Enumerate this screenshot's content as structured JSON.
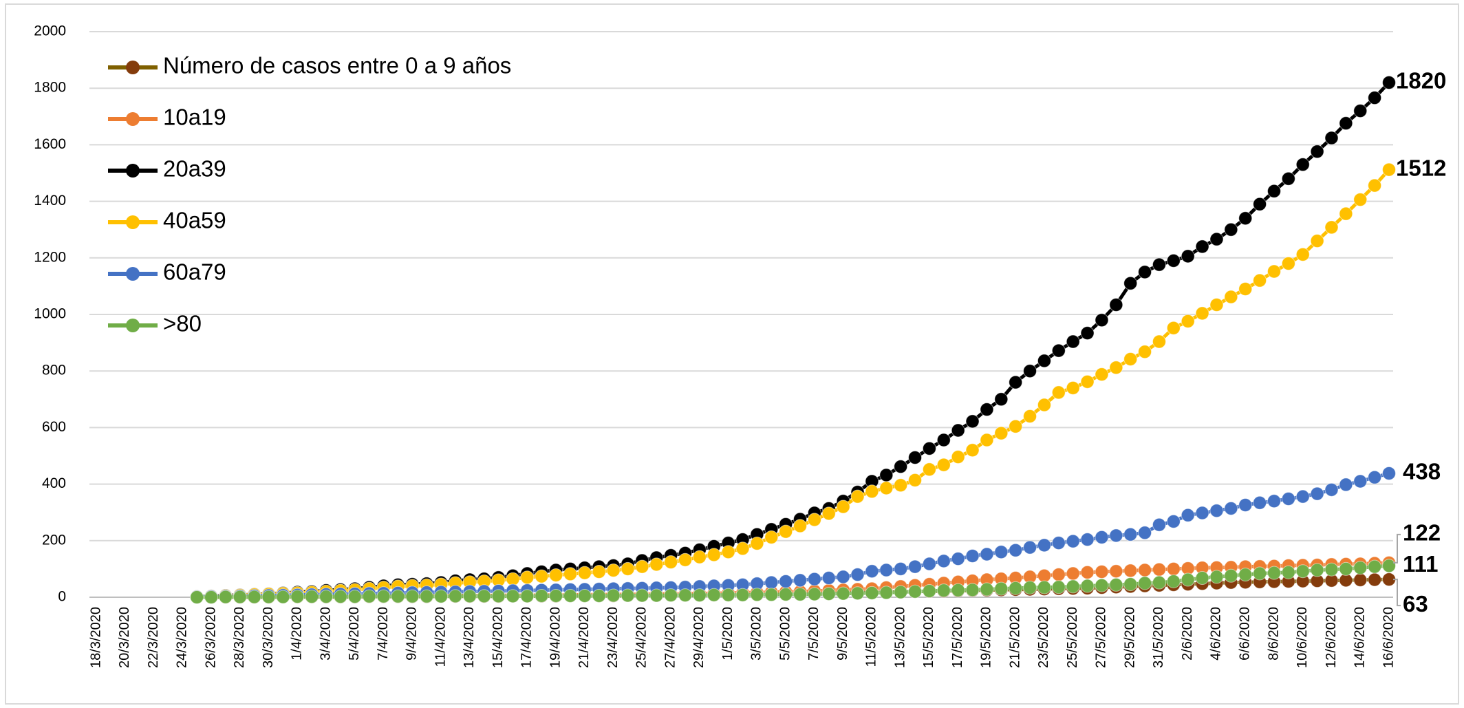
{
  "chart_data": {
    "type": "line",
    "categories": [
      "18/3/2020",
      null,
      "20/3/2020",
      null,
      "22/3/2020",
      null,
      "24/3/2020",
      null,
      "26/3/2020",
      null,
      "28/3/2020",
      null,
      "30/3/2020",
      null,
      "1/4/2020",
      null,
      "3/4/2020",
      null,
      "5/4/2020",
      null,
      "7/4/2020",
      null,
      "9/4/2020",
      null,
      "11/4/2020",
      null,
      "13/4/2020",
      null,
      "15/4/2020",
      null,
      "17/4/2020",
      null,
      "19/4/2020",
      null,
      "21/4/2020",
      null,
      "23/4/2020",
      null,
      "25/4/2020",
      null,
      "27/4/2020",
      null,
      "29/4/2020",
      null,
      "1/5/2020",
      null,
      "3/5/2020",
      null,
      "5/5/2020",
      null,
      "7/5/2020",
      null,
      "9/5/2020",
      null,
      "11/5/2020",
      null,
      "13/5/2020",
      null,
      "15/5/2020",
      null,
      "17/5/2020",
      null,
      "19/5/2020",
      null,
      "21/5/2020",
      null,
      "23/5/2020",
      null,
      "25/5/2020",
      null,
      "27/5/2020",
      null,
      "29/5/2020",
      null,
      "31/5/2020",
      null,
      "2/6/2020",
      null,
      "4/6/2020",
      null,
      "6/6/2020",
      null,
      "8/6/2020",
      null,
      "10/6/2020",
      null,
      "12/6/2020",
      null,
      "14/6/2020",
      null,
      "16/6/2020"
    ],
    "series": [
      {
        "name": "Número de casos entre 0 a 9 años",
        "color": "#7f6000",
        "marker_color": "#843c0c",
        "label_color": "#843c0c",
        "values": [
          null,
          null,
          null,
          null,
          null,
          null,
          null,
          0,
          0,
          0,
          0,
          0,
          0,
          1,
          1,
          1,
          1,
          1,
          1,
          2,
          2,
          2,
          2,
          2,
          3,
          3,
          3,
          3,
          3,
          4,
          4,
          4,
          4,
          5,
          5,
          5,
          5,
          6,
          6,
          6,
          7,
          7,
          7,
          8,
          8,
          9,
          9,
          10,
          11,
          12,
          13,
          14,
          15,
          16,
          17,
          18,
          19,
          20,
          21,
          22,
          23,
          24,
          25,
          26,
          27,
          28,
          29,
          30,
          31,
          32,
          34,
          36,
          38,
          40,
          42,
          44,
          46,
          48,
          50,
          52,
          53,
          54,
          55,
          56,
          57,
          58,
          59,
          60,
          61,
          62,
          63
        ]
      },
      {
        "name": "10a19",
        "color": "#ed7d31",
        "marker_color": "#ed7d31",
        "label_color": "#bf9000",
        "values": [
          null,
          null,
          null,
          null,
          null,
          null,
          null,
          0,
          0,
          1,
          1,
          1,
          1,
          2,
          2,
          2,
          3,
          3,
          3,
          4,
          4,
          4,
          5,
          5,
          5,
          6,
          6,
          6,
          7,
          7,
          7,
          8,
          8,
          8,
          9,
          9,
          10,
          10,
          11,
          11,
          12,
          12,
          13,
          14,
          15,
          16,
          17,
          18,
          19,
          20,
          22,
          24,
          26,
          28,
          30,
          34,
          38,
          42,
          46,
          50,
          54,
          58,
          62,
          65,
          68,
          72,
          76,
          80,
          84,
          88,
          90,
          92,
          94,
          96,
          98,
          100,
          102,
          104,
          105,
          106,
          108,
          109,
          110,
          112,
          113,
          114,
          116,
          117,
          118,
          120,
          122
        ]
      },
      {
        "name": "20a39",
        "color": "#000000",
        "marker_color": "#000000",
        "label_color": "#000000",
        "values": [
          null,
          null,
          null,
          null,
          null,
          null,
          null,
          2,
          4,
          6,
          8,
          10,
          12,
          15,
          18,
          20,
          24,
          27,
          30,
          35,
          40,
          44,
          46,
          48,
          52,
          58,
          62,
          65,
          70,
          76,
          84,
          90,
          96,
          100,
          104,
          108,
          112,
          118,
          130,
          140,
          148,
          156,
          168,
          180,
          192,
          204,
          222,
          240,
          258,
          276,
          298,
          314,
          340,
          372,
          410,
          432,
          462,
          494,
          526,
          556,
          590,
          622,
          664,
          700,
          760,
          800,
          836,
          872,
          904,
          934,
          980,
          1034,
          1110,
          1150,
          1176,
          1190,
          1206,
          1240,
          1266,
          1300,
          1340,
          1390,
          1436,
          1480,
          1530,
          1576,
          1624,
          1676,
          1720,
          1766,
          1820
        ]
      },
      {
        "name": "40a59",
        "color": "#ffc000",
        "marker_color": "#ffc000",
        "label_color": "#ffd966",
        "values": [
          null,
          null,
          null,
          null,
          null,
          null,
          null,
          1,
          3,
          5,
          7,
          9,
          11,
          13,
          15,
          17,
          20,
          23,
          26,
          30,
          34,
          38,
          40,
          42,
          45,
          50,
          53,
          56,
          60,
          64,
          70,
          74,
          78,
          82,
          86,
          90,
          95,
          100,
          108,
          116,
          124,
          132,
          142,
          150,
          160,
          172,
          190,
          212,
          232,
          252,
          274,
          296,
          320,
          356,
          374,
          386,
          396,
          414,
          452,
          468,
          496,
          520,
          556,
          580,
          604,
          640,
          680,
          724,
          740,
          762,
          788,
          812,
          842,
          868,
          904,
          952,
          976,
          1004,
          1034,
          1062,
          1090,
          1120,
          1152,
          1180,
          1212,
          1260,
          1308,
          1356,
          1406,
          1456,
          1512
        ]
      },
      {
        "name": "60a79",
        "color": "#4472c4",
        "marker_color": "#4472c4",
        "label_color": "#2e75b6",
        "values": [
          null,
          null,
          null,
          null,
          null,
          null,
          null,
          1,
          2,
          3,
          4,
          5,
          6,
          7,
          8,
          9,
          10,
          11,
          12,
          13,
          14,
          15,
          16,
          17,
          18,
          19,
          20,
          21,
          22,
          23,
          24,
          25,
          26,
          27,
          28,
          29,
          30,
          31,
          32,
          33,
          34,
          36,
          38,
          40,
          42,
          44,
          48,
          52,
          56,
          60,
          64,
          68,
          72,
          80,
          92,
          96,
          100,
          108,
          118,
          128,
          136,
          146,
          152,
          160,
          166,
          176,
          184,
          192,
          198,
          204,
          212,
          218,
          222,
          228,
          256,
          268,
          290,
          298,
          306,
          314,
          326,
          334,
          340,
          348,
          356,
          366,
          380,
          398,
          410,
          424,
          438
        ]
      },
      {
        "name": ">80",
        "color": "#70ad47",
        "marker_color": "#70ad47",
        "label_color": "#548235",
        "values": [
          null,
          null,
          null,
          null,
          null,
          null,
          null,
          0,
          0,
          1,
          1,
          1,
          1,
          1,
          2,
          2,
          2,
          2,
          2,
          3,
          3,
          3,
          3,
          3,
          3,
          4,
          4,
          4,
          4,
          4,
          4,
          5,
          5,
          5,
          5,
          5,
          6,
          6,
          6,
          6,
          7,
          7,
          7,
          8,
          8,
          8,
          9,
          9,
          10,
          10,
          11,
          12,
          13,
          14,
          15,
          16,
          18,
          20,
          22,
          24,
          25,
          26,
          28,
          30,
          32,
          34,
          35,
          36,
          38,
          40,
          42,
          44,
          46,
          50,
          52,
          56,
          62,
          68,
          72,
          76,
          80,
          84,
          86,
          88,
          92,
          96,
          98,
          100,
          104,
          108,
          111
        ]
      }
    ],
    "ylim": [
      0,
      2000
    ],
    "yticks": [
      0,
      200,
      400,
      600,
      800,
      1000,
      1200,
      1400,
      1600,
      1800,
      2000
    ],
    "grid": true,
    "legend": "upper left",
    "data_labels": "last"
  }
}
